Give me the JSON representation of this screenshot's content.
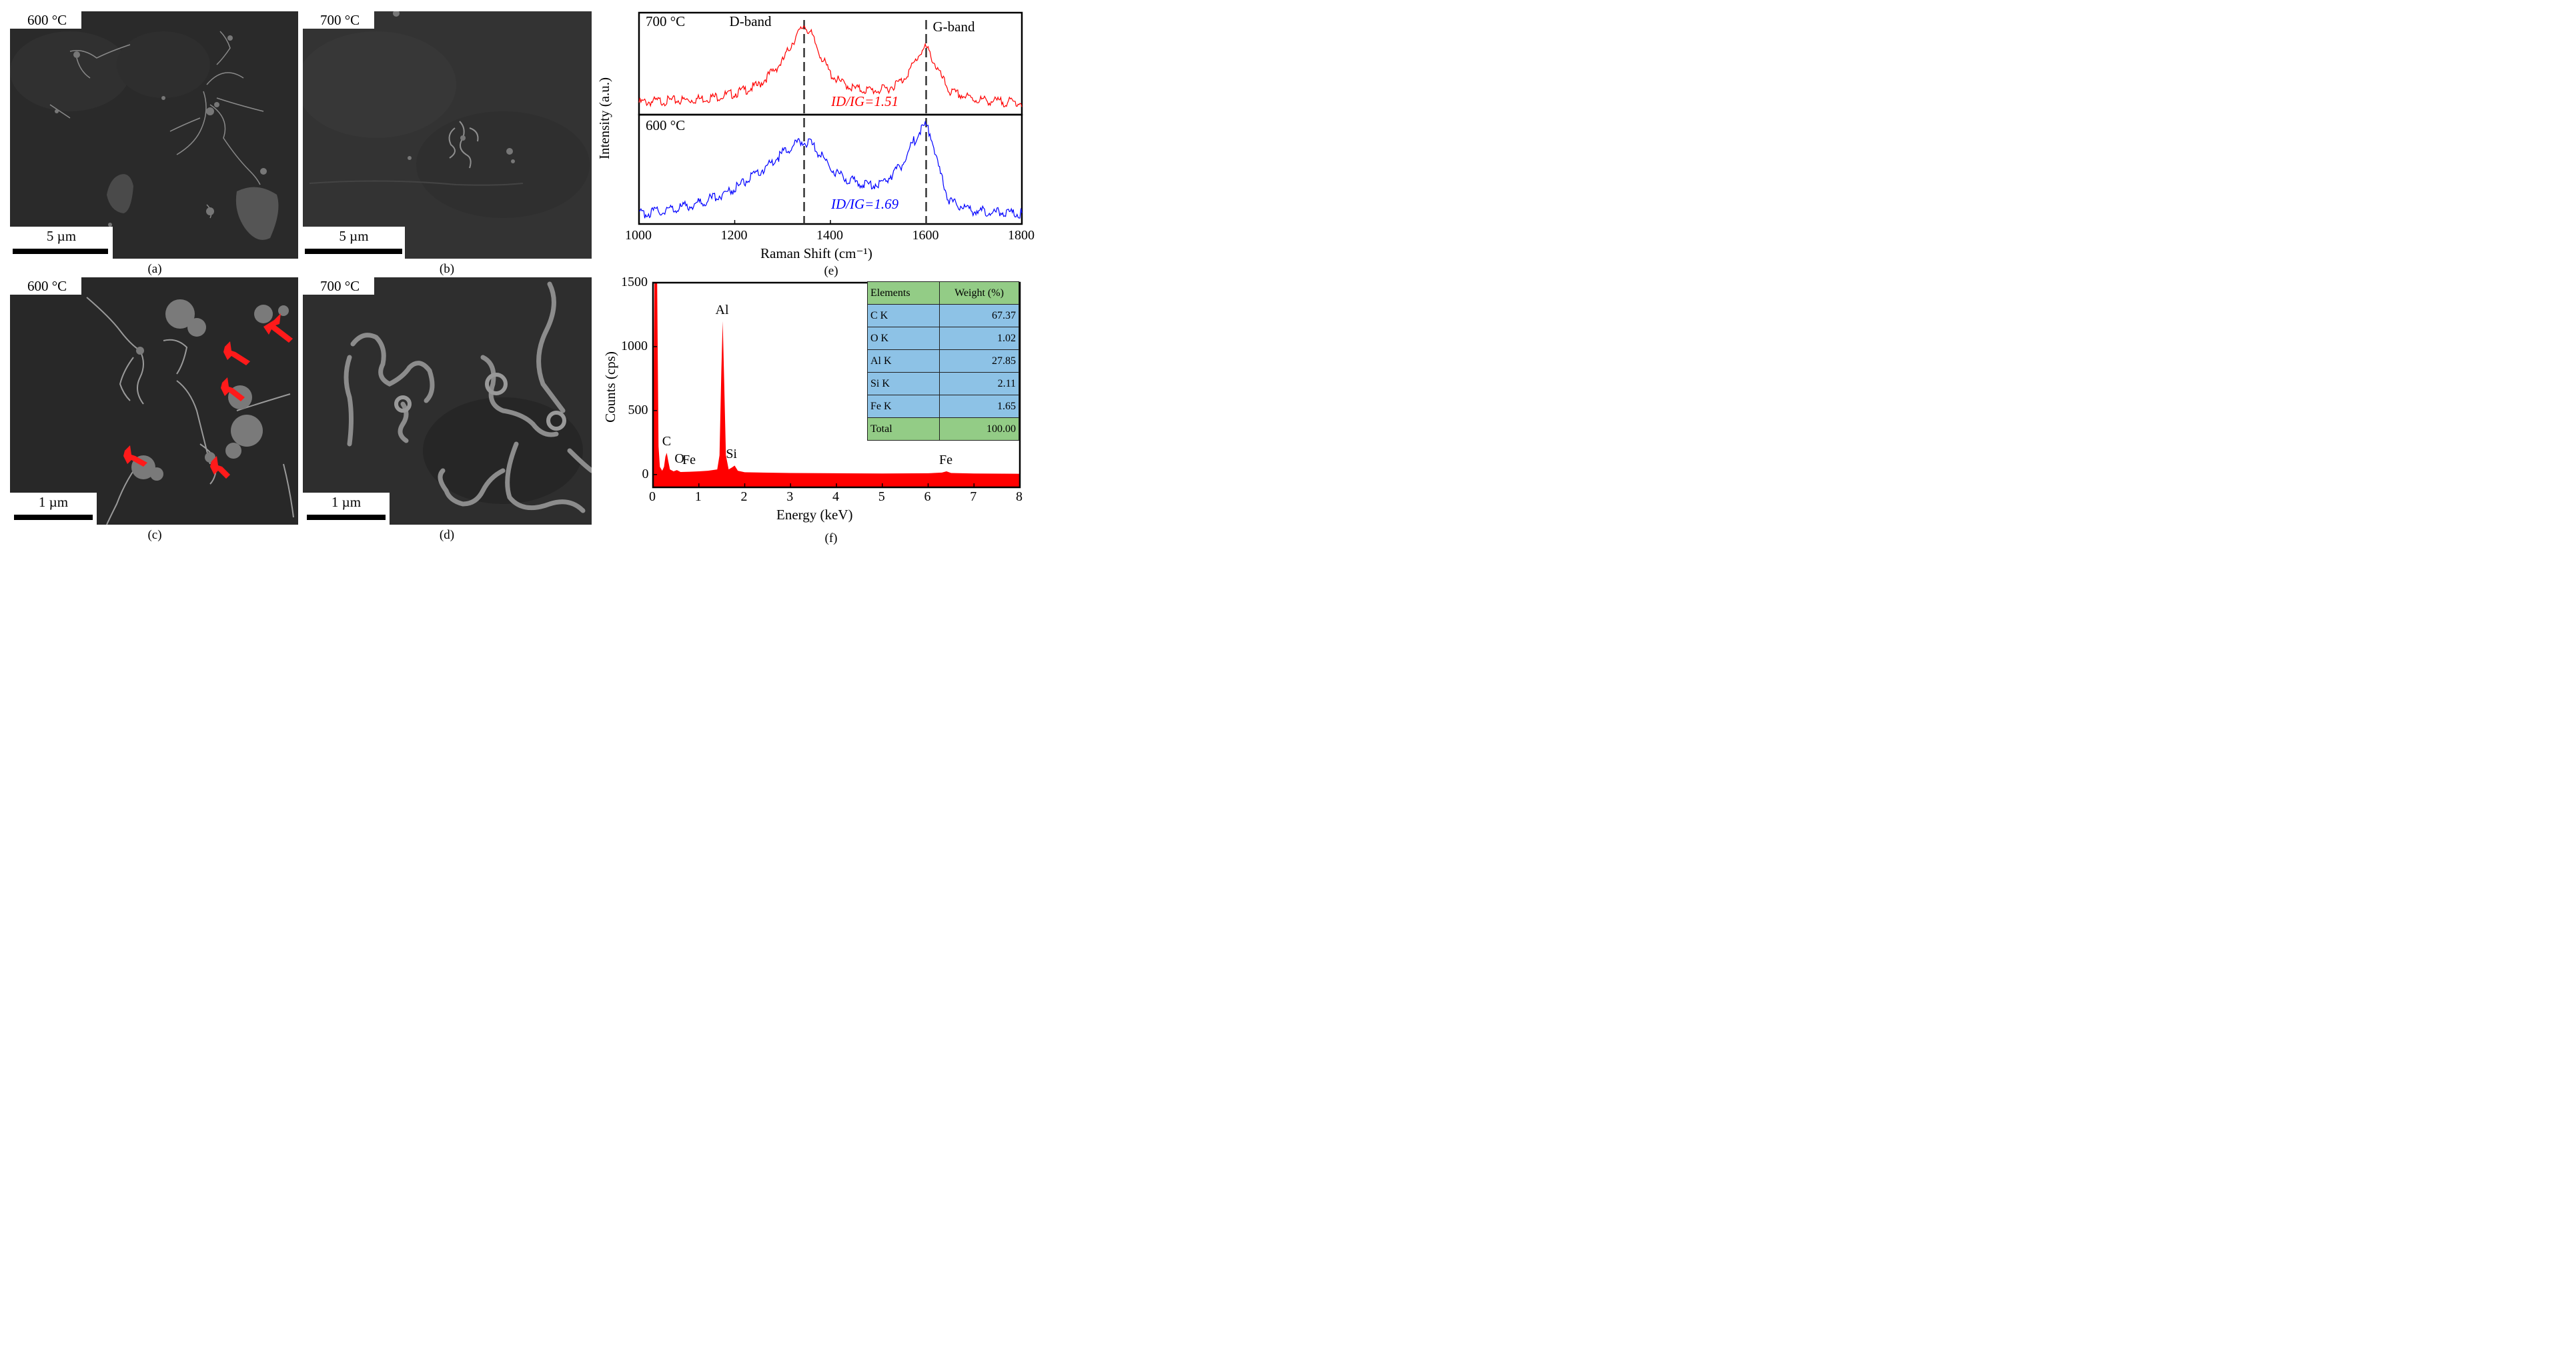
{
  "figure": {
    "panels": [
      {
        "id": "a",
        "temperature": "600 °C",
        "scale": "5 µm",
        "caption": "(a)"
      },
      {
        "id": "b",
        "temperature": "700 °C",
        "scale": "5 µm",
        "caption": "(b)"
      },
      {
        "id": "c",
        "temperature": "600 °C",
        "scale": "1 µm",
        "caption": "(c)"
      },
      {
        "id": "d",
        "temperature": "700 °C",
        "scale": "1 µm",
        "caption": "(d)"
      }
    ],
    "raman_caption": "(e)",
    "eds_caption": "(f)"
  },
  "chart_data": [
    {
      "type": "line",
      "xlabel": "Raman Shift (cm⁻¹)",
      "ylabel": "Intensity (a.u.)",
      "xlim": [
        1000,
        1800
      ],
      "xticks": [
        1000,
        1200,
        1400,
        1600,
        1800
      ],
      "band_lines": [
        {
          "label": "D-band",
          "x": 1345
        },
        {
          "label": "G-band",
          "x": 1600
        }
      ],
      "series": [
        {
          "name": "700 °C",
          "color": "#ff0000",
          "ratio_label": "ID/IG=1.51",
          "x": [
            1000,
            1050,
            1100,
            1150,
            1200,
            1250,
            1300,
            1320,
            1340,
            1345,
            1360,
            1380,
            1400,
            1420,
            1450,
            1480,
            1500,
            1520,
            1550,
            1570,
            1590,
            1600,
            1610,
            1630,
            1650,
            1700,
            1750,
            1800
          ],
          "y": [
            0.05,
            0.07,
            0.08,
            0.11,
            0.16,
            0.26,
            0.55,
            0.78,
            0.95,
            1.0,
            0.88,
            0.62,
            0.4,
            0.3,
            0.22,
            0.2,
            0.2,
            0.22,
            0.32,
            0.48,
            0.68,
            0.72,
            0.62,
            0.38,
            0.18,
            0.09,
            0.06,
            0.05
          ]
        },
        {
          "name": "600 °C",
          "color": "#0000ff",
          "ratio_label": "ID/IG=1.69",
          "x": [
            1000,
            1050,
            1100,
            1150,
            1200,
            1250,
            1300,
            1320,
            1340,
            1345,
            1360,
            1380,
            1400,
            1420,
            1450,
            1480,
            1500,
            1520,
            1550,
            1570,
            1590,
            1600,
            1610,
            1630,
            1650,
            1700,
            1750,
            1800
          ],
          "y": [
            0.02,
            0.06,
            0.11,
            0.19,
            0.31,
            0.48,
            0.7,
            0.78,
            0.83,
            0.84,
            0.8,
            0.68,
            0.55,
            0.45,
            0.38,
            0.35,
            0.36,
            0.42,
            0.58,
            0.8,
            0.98,
            1.0,
            0.9,
            0.45,
            0.15,
            0.06,
            0.04,
            0.03
          ]
        }
      ]
    },
    {
      "type": "area",
      "xlabel": "Energy (keV)",
      "ylabel": "Counts (cps)",
      "xlim": [
        0,
        8
      ],
      "ylim": [
        -100,
        1500
      ],
      "xticks": [
        0,
        1,
        2,
        3,
        4,
        5,
        6,
        7,
        8
      ],
      "yticks": [
        0,
        500,
        1000,
        1500
      ],
      "color": "#ff0000",
      "x": [
        0,
        0.03,
        0.06,
        0.09,
        0.12,
        0.15,
        0.2,
        0.24,
        0.27,
        0.3,
        0.33,
        0.37,
        0.45,
        0.52,
        0.6,
        0.8,
        1.0,
        1.2,
        1.4,
        1.45,
        1.49,
        1.52,
        1.55,
        1.59,
        1.65,
        1.72,
        1.78,
        1.85,
        2.0,
        3.0,
        4.0,
        5.0,
        6.0,
        6.3,
        6.4,
        6.5,
        7.0,
        8.0
      ],
      "y": [
        0,
        1500,
        1500,
        1500,
        220,
        60,
        30,
        60,
        140,
        170,
        110,
        40,
        25,
        35,
        20,
        22,
        25,
        30,
        40,
        150,
        800,
        1200,
        750,
        150,
        40,
        55,
        70,
        30,
        18,
        12,
        10,
        8,
        10,
        15,
        25,
        12,
        8,
        6
      ],
      "peak_labels": [
        {
          "text": "Al",
          "x": 1.52,
          "y": 1200
        },
        {
          "text": "C",
          "x": 0.28,
          "y": 170
        },
        {
          "text": "O",
          "x": 0.55,
          "y": 35
        },
        {
          "text": "Fe",
          "x": 0.8,
          "y": 25
        },
        {
          "text": "Si",
          "x": 1.75,
          "y": 70
        },
        {
          "text": "Fe",
          "x": 6.4,
          "y": 25
        }
      ]
    },
    {
      "type": "table",
      "headers": [
        "Elements",
        "Weight (%)"
      ],
      "rows": [
        [
          "C K",
          "67.37"
        ],
        [
          "O K",
          "1.02"
        ],
        [
          "Al K",
          "27.85"
        ],
        [
          "Si K",
          "2.11"
        ],
        [
          "Fe K",
          "1.65"
        ]
      ],
      "footer": [
        "Total",
        "100.00"
      ]
    }
  ]
}
